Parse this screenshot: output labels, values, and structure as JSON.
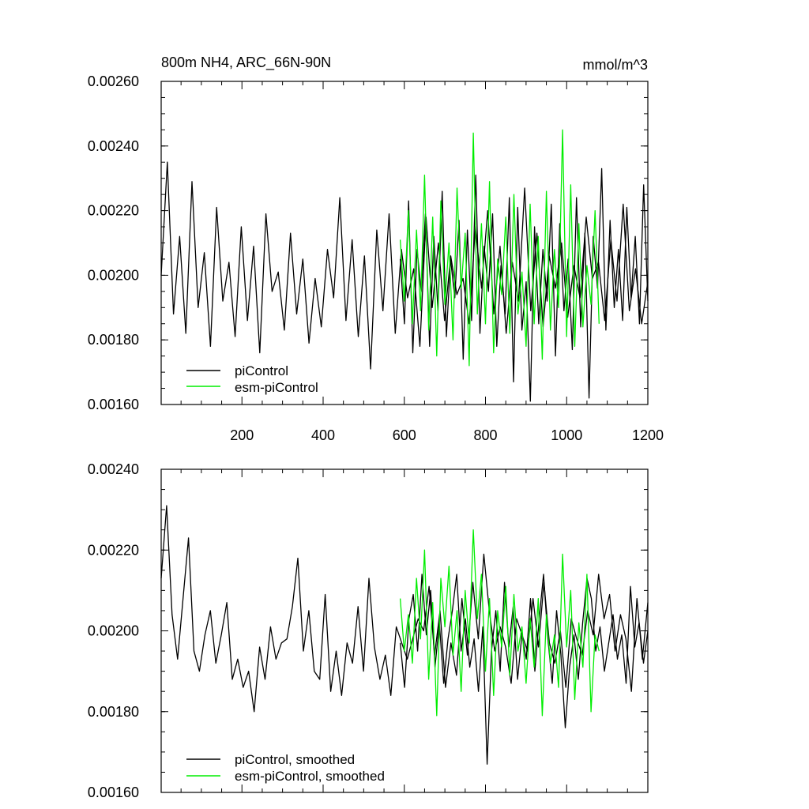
{
  "colors": {
    "piControl": "#000000",
    "esm_piControl": "#00ee00",
    "axis": "#000000",
    "background": "#ffffff"
  },
  "chart_data": [
    {
      "type": "line",
      "panel": "top",
      "title": "800m NH4, ARC_66N-90N",
      "units": "mmol/m^3",
      "xlim": [
        1,
        1200
      ],
      "ylim": [
        0.0016,
        0.0026
      ],
      "x_ticks": [
        200,
        400,
        600,
        800,
        1000,
        1200
      ],
      "x_tick_labels": [
        "200",
        "400",
        "600",
        "800",
        "1000",
        "1200"
      ],
      "y_ticks": [
        0.0016,
        0.0018,
        0.002,
        0.0022,
        0.0024,
        0.0026
      ],
      "y_tick_labels": [
        "0.00160",
        "0.00180",
        "0.00200",
        "0.00220",
        "0.00240",
        "0.00260"
      ],
      "grid": false,
      "legend_position": "bottom-left",
      "series": [
        {
          "name": "piControl",
          "color": "#000000",
          "x_start": 1,
          "x_end": 1200,
          "values": [
            0.002,
            0.00235,
            0.00188,
            0.00212,
            0.00182,
            0.00229,
            0.0019,
            0.00207,
            0.00178,
            0.00221,
            0.00192,
            0.00204,
            0.00181,
            0.00215,
            0.00186,
            0.00209,
            0.00176,
            0.00219,
            0.00195,
            0.00201,
            0.00183,
            0.00213,
            0.00188,
            0.00205,
            0.00179,
            0.00199,
            0.00184,
            0.00208,
            0.00193,
            0.00224,
            0.00186,
            0.00211,
            0.00181,
            0.00206,
            0.00171,
            0.00214,
            0.00189,
            0.00219,
            0.00182,
            0.00208,
            0.00193,
            0.00202,
            0.00178,
            0.00218,
            0.0019,
            0.0021,
            0.00186,
            0.00206,
            0.00194,
            0.00199,
            0.00185,
            0.00215,
            0.00196,
            0.0022,
            0.00188,
            0.00209,
            0.00182,
            0.00204,
            0.00192,
            0.00227,
            0.00189,
            0.00213,
            0.00184,
            0.00206,
            0.00196,
            0.0021,
            0.00187,
            0.00203,
            0.00193,
            0.00218,
            0.00199,
            0.00204,
            0.00186,
            0.00211,
            0.00192,
            0.00222,
            0.00189,
            0.00202,
            0.00185,
            0.00198
          ]
        },
        {
          "name": "piControl",
          "color": "#000000",
          "x_start": 590,
          "x_end": 1200,
          "values": [
            0.00205,
            0.00185,
            0.00223,
            0.00176,
            0.00208,
            0.00195,
            0.00219,
            0.00178,
            0.00212,
            0.00189,
            0.00226,
            0.00181,
            0.00205,
            0.00193,
            0.00217,
            0.00174,
            0.00214,
            0.00186,
            0.00231,
            0.00182,
            0.00209,
            0.00195,
            0.00219,
            0.00178,
            0.00203,
            0.00188,
            0.00224,
            0.00167,
            0.00221,
            0.00183,
            0.00198,
            0.00161,
            0.00215,
            0.00185,
            0.00208,
            0.00192,
            0.00222,
            0.00175,
            0.00216,
            0.00189,
            0.00205,
            0.00177,
            0.00224,
            0.00184,
            0.00213,
            0.00162,
            0.00212,
            0.00196,
            0.00233,
            0.00183,
            0.00217,
            0.0019,
            0.00208,
            0.00186,
            0.00221,
            0.00193,
            0.00212,
            0.00185,
            0.00228,
            0.00192
          ]
        },
        {
          "name": "esm-piControl",
          "color": "#00ee00",
          "x_start": 590,
          "x_end": 1080,
          "values": [
            0.00211,
            0.00192,
            0.0022,
            0.00185,
            0.00214,
            0.00189,
            0.00231,
            0.00183,
            0.00218,
            0.00175,
            0.00223,
            0.00191,
            0.0021,
            0.0018,
            0.00227,
            0.00196,
            0.00213,
            0.00172,
            0.00244,
            0.00188,
            0.00216,
            0.00185,
            0.00229,
            0.00176,
            0.00205,
            0.00194,
            0.00218,
            0.00182,
            0.00225,
            0.00188,
            0.00201,
            0.00178,
            0.00222,
            0.00185,
            0.00212,
            0.00174,
            0.00226,
            0.00183,
            0.00208,
            0.0019,
            0.00245,
            0.00181,
            0.00228,
            0.00178,
            0.00216,
            0.00184,
            0.00203,
            0.00191,
            0.0022,
            0.00185
          ]
        }
      ]
    },
    {
      "type": "line",
      "panel": "bottom",
      "title": "",
      "xlim": [
        1,
        1200
      ],
      "ylim": [
        0.0016,
        0.0024
      ],
      "x_ticks": [
        200,
        400,
        600,
        800,
        1000,
        1200
      ],
      "y_ticks": [
        0.0016,
        0.0018,
        0.002,
        0.0022,
        0.0024
      ],
      "y_tick_labels": [
        "0.00160",
        "0.00180",
        "0.00200",
        "0.00220",
        "0.00240"
      ],
      "grid": false,
      "legend_position": "bottom-left",
      "series": [
        {
          "name": "piControl, smoothed",
          "color": "#000000",
          "x_start": 1,
          "x_end": 1200,
          "values": [
            0.00213,
            0.00231,
            0.00204,
            0.00193,
            0.00208,
            0.00223,
            0.00195,
            0.0019,
            0.00199,
            0.00205,
            0.00192,
            0.00199,
            0.00207,
            0.00188,
            0.00193,
            0.00186,
            0.0019,
            0.0018,
            0.00196,
            0.00188,
            0.00201,
            0.00193,
            0.00197,
            0.00198,
            0.00206,
            0.00218,
            0.00195,
            0.00205,
            0.0019,
            0.00188,
            0.00209,
            0.00185,
            0.00195,
            0.00184,
            0.00197,
            0.00192,
            0.00206,
            0.0019,
            0.00213,
            0.00196,
            0.00188,
            0.00194,
            0.00184,
            0.00201,
            0.00197,
            0.00193,
            0.00198,
            0.00203,
            0.002,
            0.00211,
            0.00194,
            0.00205,
            0.00186,
            0.00197,
            0.00189,
            0.00208,
            0.00194,
            0.00212,
            0.00198,
            0.00219,
            0.00205,
            0.00195,
            0.00201,
            0.00196,
            0.00187,
            0.00203,
            0.00199,
            0.00195,
            0.00208,
            0.00196,
            0.00212,
            0.00197,
            0.00192,
            0.002,
            0.00186,
            0.00203,
            0.00198,
            0.00194,
            0.00205,
            0.00199,
            0.00214,
            0.00203,
            0.00209,
            0.00195,
            0.00204,
            0.00198,
            0.00185,
            0.00208,
            0.00193,
            0.00207
          ]
        },
        {
          "name": "piControl, smoothed",
          "color": "#000000",
          "x_start": 590,
          "x_end": 1200,
          "values": [
            0.00197,
            0.00186,
            0.00203,
            0.00209,
            0.00195,
            0.00214,
            0.00199,
            0.0021,
            0.00191,
            0.00202,
            0.00187,
            0.00198,
            0.00205,
            0.00214,
            0.00195,
            0.00203,
            0.00191,
            0.00198,
            0.00185,
            0.00201,
            0.00167,
            0.00195,
            0.00205,
            0.0019,
            0.00212,
            0.00196,
            0.00206,
            0.00188,
            0.00199,
            0.00193,
            0.00208,
            0.0019,
            0.00203,
            0.00214,
            0.00198,
            0.00187,
            0.00205,
            0.00194,
            0.00176,
            0.00191,
            0.00199,
            0.00188,
            0.00202,
            0.00213,
            0.00208,
            0.00195,
            0.00201,
            0.0019,
            0.00197,
            0.00204,
            0.00193,
            0.00199,
            0.00187,
            0.00211,
            0.00196,
            0.00202,
            0.00192,
            0.002
          ]
        },
        {
          "name": "esm-piControl, smoothed",
          "color": "#00ee00",
          "x_start": 590,
          "x_end": 1080,
          "values": [
            0.00208,
            0.00195,
            0.00204,
            0.00192,
            0.00213,
            0.00198,
            0.0022,
            0.00188,
            0.00207,
            0.00179,
            0.00213,
            0.00201,
            0.00216,
            0.00194,
            0.00205,
            0.00185,
            0.0021,
            0.00197,
            0.00225,
            0.00203,
            0.00214,
            0.0019,
            0.00208,
            0.00184,
            0.00205,
            0.00196,
            0.00211,
            0.00189,
            0.00209,
            0.00195,
            0.00201,
            0.00187,
            0.00203,
            0.00191,
            0.00208,
            0.00179,
            0.00204,
            0.00192,
            0.00199,
            0.00186,
            0.00219,
            0.00196,
            0.0021,
            0.00183,
            0.00202,
            0.00191,
            0.00214,
            0.0018,
            0.00199,
            0.00195
          ]
        }
      ]
    }
  ]
}
